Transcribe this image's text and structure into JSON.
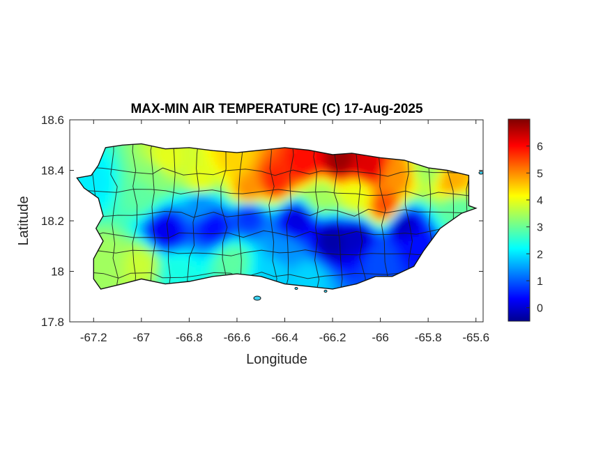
{
  "figure": {
    "title": "MAX-MIN AIR TEMPERATURE (C) 17-Aug-2025",
    "xlabel": "Longitude",
    "ylabel": "Latitude"
  },
  "chart_data": {
    "type": "heatmap",
    "title": "MAX-MIN AIR TEMPERATURE (C) 17-Aug-2025",
    "xlabel": "Longitude",
    "ylabel": "Latitude",
    "xlim": [
      -67.3,
      -65.57
    ],
    "ylim": [
      17.8,
      18.6
    ],
    "x_ticks": [
      -67.2,
      -67,
      -66.8,
      -66.6,
      -66.4,
      -66.2,
      -66,
      -65.8,
      -65.6
    ],
    "x_tick_labels": [
      "-67.2",
      "-67",
      "-66.8",
      "-66.6",
      "-66.4",
      "-66.2",
      "-66",
      "-65.8",
      "-65.6"
    ],
    "y_ticks": [
      17.8,
      18,
      18.2,
      18.4,
      18.6
    ],
    "y_tick_labels": [
      "17.8",
      "18",
      "18.2",
      "18.4",
      "18.6"
    ],
    "grid": false,
    "colormap": "jet",
    "colorbar": {
      "range": [
        -0.5,
        7.0
      ],
      "ticks": [
        0,
        1,
        2,
        3,
        4,
        5,
        6
      ],
      "tick_labels": [
        "0",
        "1",
        "2",
        "3",
        "4",
        "5",
        "6"
      ],
      "placement": "right"
    },
    "land_outline": [
      [
        -67.27,
        18.37
      ],
      [
        -67.21,
        18.38
      ],
      [
        -67.18,
        18.42
      ],
      [
        -67.15,
        18.49
      ],
      [
        -67.08,
        18.5
      ],
      [
        -67.0,
        18.505
      ],
      [
        -66.9,
        18.485
      ],
      [
        -66.8,
        18.49
      ],
      [
        -66.7,
        18.478
      ],
      [
        -66.6,
        18.47
      ],
      [
        -66.5,
        18.48
      ],
      [
        -66.4,
        18.49
      ],
      [
        -66.3,
        18.48
      ],
      [
        -66.2,
        18.462
      ],
      [
        -66.12,
        18.468
      ],
      [
        -66.0,
        18.45
      ],
      [
        -65.9,
        18.44
      ],
      [
        -65.8,
        18.41
      ],
      [
        -65.72,
        18.4
      ],
      [
        -65.63,
        18.38
      ],
      [
        -65.63,
        18.26
      ],
      [
        -65.6,
        18.25
      ],
      [
        -65.66,
        18.23
      ],
      [
        -65.75,
        18.17
      ],
      [
        -65.82,
        18.08
      ],
      [
        -65.86,
        18.02
      ],
      [
        -65.95,
        17.98
      ],
      [
        -66.02,
        17.98
      ],
      [
        -66.1,
        17.95
      ],
      [
        -66.2,
        17.93
      ],
      [
        -66.3,
        17.94
      ],
      [
        -66.4,
        17.95
      ],
      [
        -66.5,
        17.98
      ],
      [
        -66.6,
        17.99
      ],
      [
        -66.7,
        17.98
      ],
      [
        -66.8,
        17.96
      ],
      [
        -66.9,
        17.95
      ],
      [
        -67.0,
        17.97
      ],
      [
        -67.08,
        17.95
      ],
      [
        -67.17,
        17.93
      ],
      [
        -67.2,
        17.97
      ],
      [
        -67.2,
        18.05
      ],
      [
        -67.16,
        18.12
      ],
      [
        -67.19,
        18.17
      ],
      [
        -67.16,
        18.22
      ],
      [
        -67.18,
        18.29
      ],
      [
        -67.24,
        18.33
      ]
    ],
    "value_field_anchors": [
      {
        "lon": -66.17,
        "lat": 18.44,
        "value": 6.8
      },
      {
        "lon": -66.05,
        "lat": 18.42,
        "value": 6.3
      },
      {
        "lon": -66.32,
        "lat": 18.43,
        "value": 6.0
      },
      {
        "lon": -66.44,
        "lat": 18.36,
        "value": 5.8
      },
      {
        "lon": -65.98,
        "lat": 18.26,
        "value": 5.5
      },
      {
        "lon": -65.93,
        "lat": 18.38,
        "value": 5.0
      },
      {
        "lon": -66.55,
        "lat": 18.32,
        "value": 5.0
      },
      {
        "lon": -66.62,
        "lat": 18.45,
        "value": 4.5
      },
      {
        "lon": -66.9,
        "lat": 18.44,
        "value": 4.0
      },
      {
        "lon": -66.75,
        "lat": 18.36,
        "value": 4.0
      },
      {
        "lon": -65.7,
        "lat": 18.36,
        "value": 4.8
      },
      {
        "lon": -65.8,
        "lat": 18.4,
        "value": 3.5
      },
      {
        "lon": -67.0,
        "lat": 18.3,
        "value": 3.0
      },
      {
        "lon": -67.2,
        "lat": 18.35,
        "value": 2.2
      },
      {
        "lon": -67.15,
        "lat": 18.05,
        "value": 3.5
      },
      {
        "lon": -67.0,
        "lat": 18.03,
        "value": 3.8
      },
      {
        "lon": -66.85,
        "lat": 18.0,
        "value": 2.5
      },
      {
        "lon": -66.62,
        "lat": 18.04,
        "value": 3.0
      },
      {
        "lon": -66.45,
        "lat": 18.0,
        "value": 2.0
      },
      {
        "lon": -66.3,
        "lat": 17.97,
        "value": 2.0
      },
      {
        "lon": -66.0,
        "lat": 18.05,
        "value": 1.0
      },
      {
        "lon": -65.85,
        "lat": 18.1,
        "value": 0.5
      },
      {
        "lon": -65.9,
        "lat": 18.18,
        "value": 0.0
      },
      {
        "lon": -65.68,
        "lat": 18.24,
        "value": 3.0
      },
      {
        "lon": -66.9,
        "lat": 18.16,
        "value": 0.3
      },
      {
        "lon": -66.7,
        "lat": 18.18,
        "value": 0.5
      },
      {
        "lon": -66.55,
        "lat": 18.22,
        "value": 0.8
      },
      {
        "lon": -66.35,
        "lat": 18.2,
        "value": 0.2
      },
      {
        "lon": -66.2,
        "lat": 18.12,
        "value": -0.2
      },
      {
        "lon": -66.1,
        "lat": 18.13,
        "value": 0.0
      },
      {
        "lon": -66.4,
        "lat": 18.08,
        "value": 1.5
      },
      {
        "lon": -66.75,
        "lat": 18.26,
        "value": 1.5
      },
      {
        "lon": -66.95,
        "lat": 18.38,
        "value": 3.3
      },
      {
        "lon": -66.25,
        "lat": 18.3,
        "value": 3.5
      },
      {
        "lon": -66.1,
        "lat": 18.3,
        "value": 4.0
      }
    ]
  }
}
